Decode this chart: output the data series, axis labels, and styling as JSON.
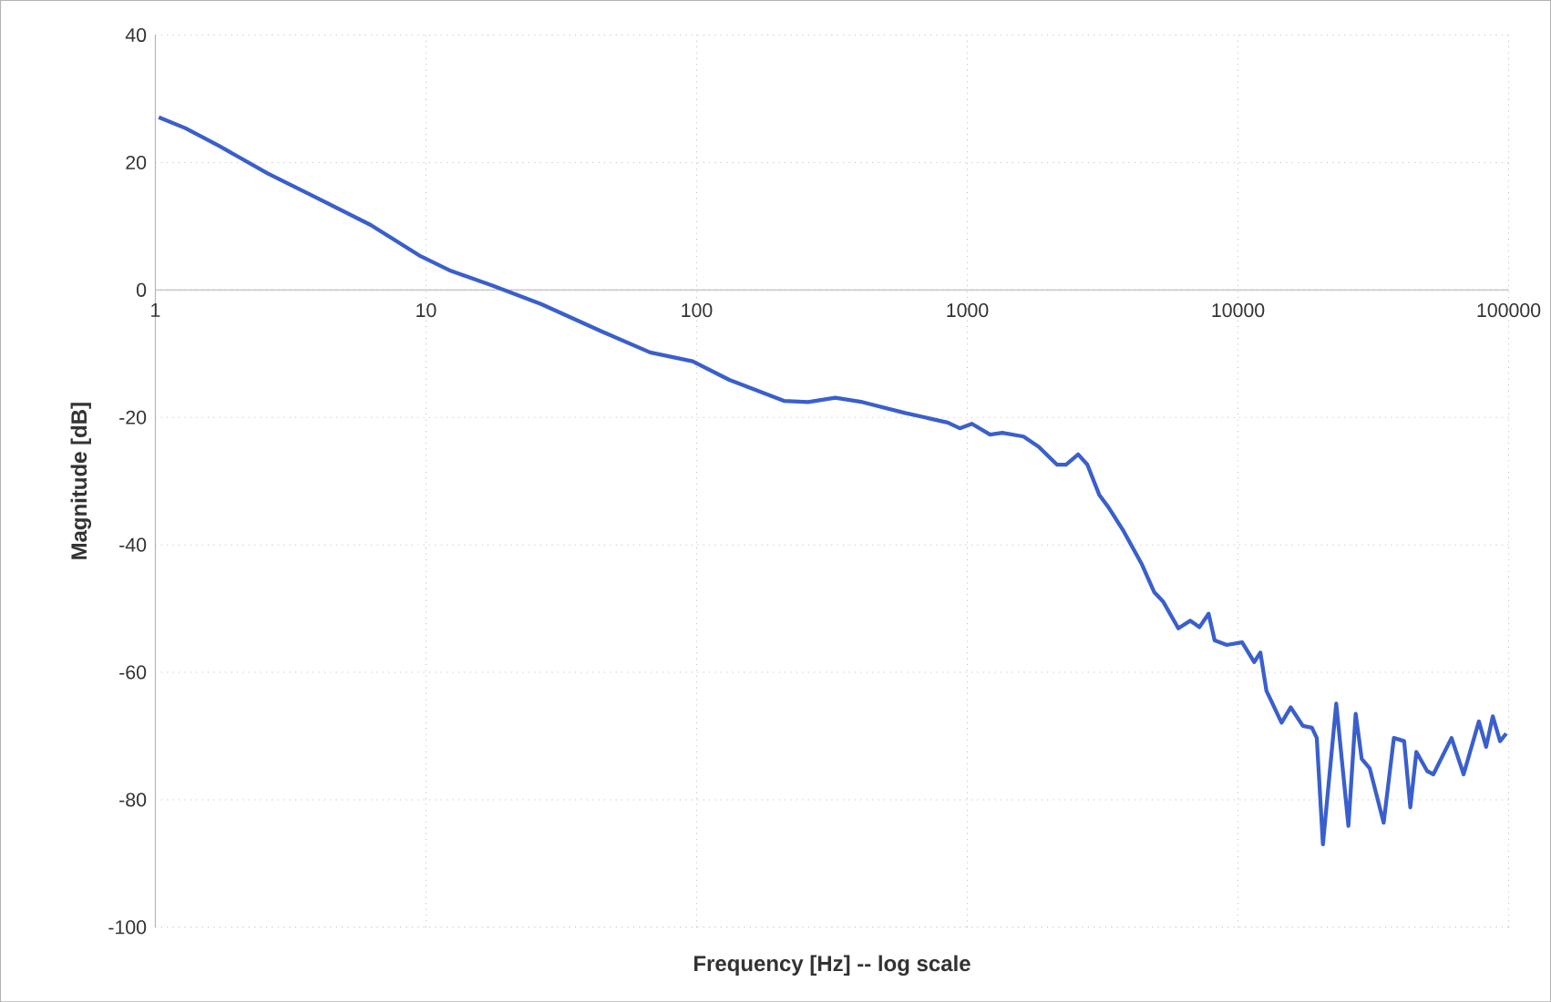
{
  "chart_data": {
    "type": "line",
    "xlabel": "Frequency [Hz] -- log scale",
    "ylabel": "Magnitude [dB]",
    "log": "x",
    "grid": true,
    "xlim": [
      1,
      100000
    ],
    "ylim": [
      -100,
      40
    ],
    "xticks": [
      1,
      10,
      100,
      1000,
      10000,
      100000
    ],
    "yticks": [
      -100,
      -80,
      -60,
      -40,
      -20,
      0,
      20,
      40
    ],
    "series": [
      {
        "color": "#3a5fcd",
        "x": [
          1.03,
          1.29,
          1.72,
          2.6,
          3.93,
          6.25,
          9.46,
          12.2,
          17.6,
          26.6,
          44.5,
          67.3,
          96.6,
          132,
          210,
          258,
          325,
          410,
          589,
          846,
          938,
          1040,
          1214,
          1346,
          1614,
          1836,
          2143,
          2316,
          2568,
          2776,
          3076,
          3323,
          3786,
          4420,
          4900,
          5290,
          6020,
          6670,
          7210,
          7790,
          8200,
          9090,
          10360,
          11480,
          12100,
          12740,
          14490,
          15660,
          17370,
          18760,
          19550,
          20600,
          23070,
          25590,
          27220,
          28660,
          30690,
          34540,
          37670,
          41110,
          43330,
          45620,
          50010,
          52720,
          61520,
          68190,
          77650,
          82570,
          87380,
          92970,
          97990
        ],
        "values": [
          27.1,
          25.4,
          22.6,
          18.3,
          14.5,
          10.2,
          5.4,
          3.1,
          0.7,
          -2.2,
          -6.5,
          -9.8,
          -11.2,
          -14.1,
          -17.4,
          -17.6,
          -16.9,
          -17.6,
          -19.3,
          -20.8,
          -21.7,
          -21,
          -22.7,
          -22.4,
          -23,
          -24.6,
          -27.4,
          -27.4,
          -25.8,
          -27.4,
          -32.2,
          -34.1,
          -37.9,
          -43.1,
          -47.4,
          -48.9,
          -53.1,
          -51.9,
          -52.9,
          -50.8,
          -55,
          -55.7,
          -55.3,
          -58.4,
          -56.9,
          -62.9,
          -67.9,
          -65.5,
          -68.4,
          -68.7,
          -70.3,
          -87,
          -64.9,
          -84.1,
          -66.5,
          -73.6,
          -75.1,
          -83.6,
          -70.3,
          -70.8,
          -81.2,
          -72.5,
          -75.5,
          -76,
          -70.3,
          -76,
          -67.7,
          -71.7,
          -66.9,
          -70.8,
          -69.6
        ]
      }
    ]
  }
}
